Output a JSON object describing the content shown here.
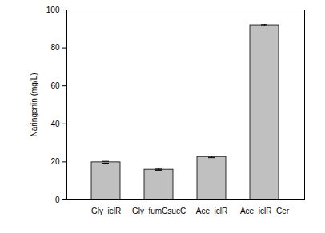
{
  "chart_data": {
    "type": "bar",
    "y_label": "Naringenin (mg/L)",
    "categories": [
      "Gly_iclR",
      "Gly_fumCsucC",
      "Ace_iclR",
      "Ace_iclR_Cer"
    ],
    "values": [
      19.8,
      15.9,
      22.6,
      92.0
    ],
    "errors": [
      0.5,
      0.3,
      0.4,
      0.3
    ],
    "color": "#c0c0c0",
    "ylim": [
      0,
      100
    ],
    "yticks": [
      0,
      20,
      40,
      60,
      80,
      100
    ],
    "grid": false
  }
}
